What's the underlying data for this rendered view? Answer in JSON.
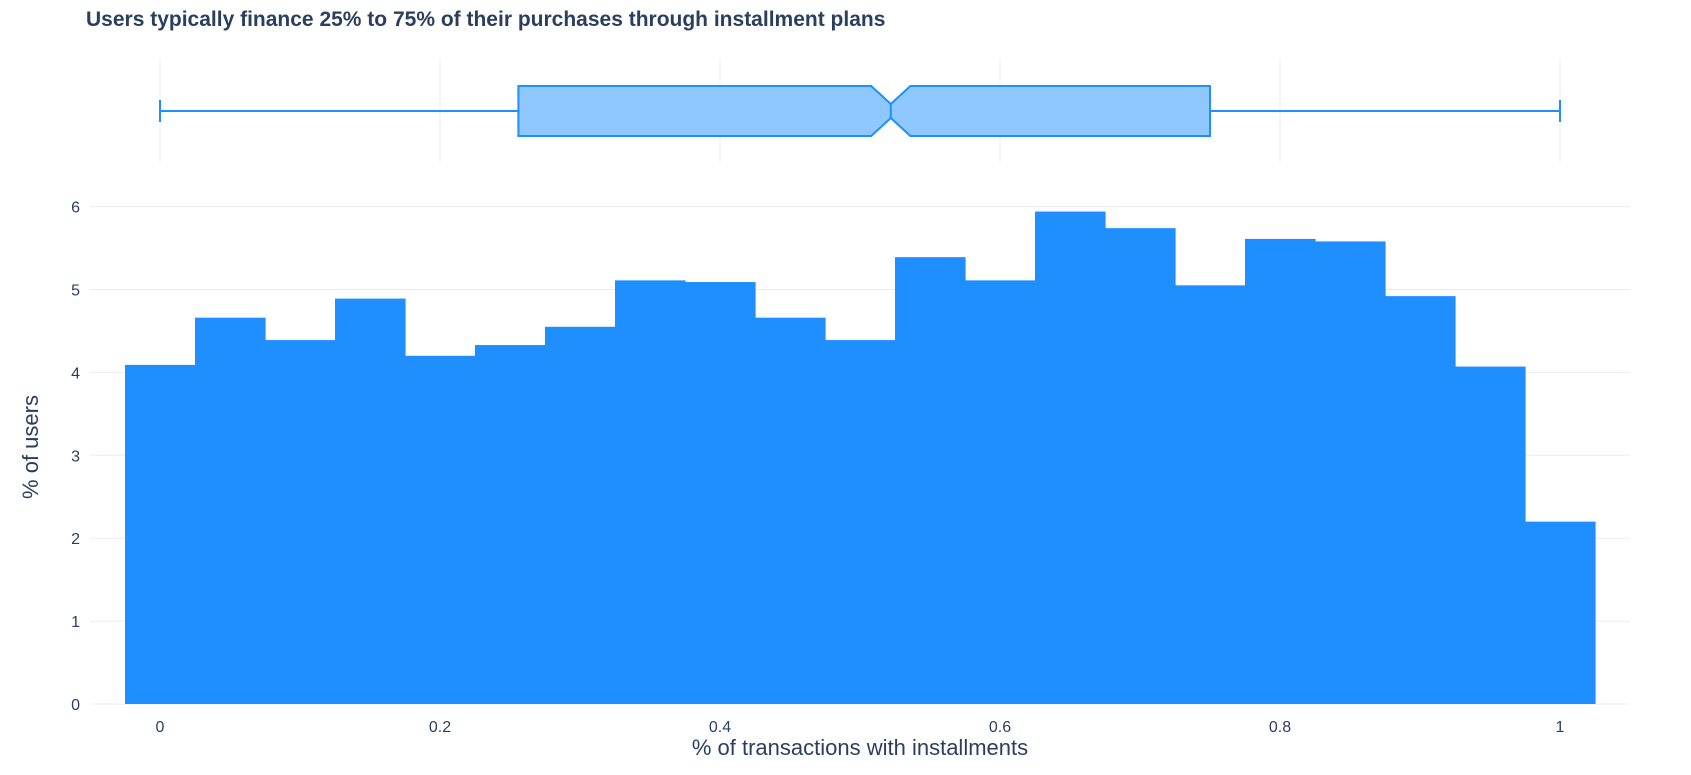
{
  "chart_data": {
    "type": "bar",
    "title": "Users typically finance 25% to 75% of their purchases through installment plans",
    "xlabel": "% of transactions with installments",
    "ylabel": "% of users",
    "xlim": [
      -0.05,
      1.05
    ],
    "ylim": [
      0,
      6.2
    ],
    "xticks": [
      "0",
      "0.2",
      "0.4",
      "0.6",
      "0.8",
      "1"
    ],
    "yticks": [
      "0",
      "1",
      "2",
      "3",
      "4",
      "5",
      "6"
    ],
    "grid": true,
    "color": "#1f8fff",
    "histogram": {
      "bin_start": -0.025,
      "bin_width": 0.05,
      "values": [
        4.09,
        4.66,
        4.39,
        4.89,
        4.2,
        4.33,
        4.55,
        5.11,
        5.09,
        4.66,
        4.39,
        5.39,
        5.11,
        5.94,
        5.74,
        5.05,
        5.61,
        5.58,
        4.92,
        4.07,
        2.2
      ]
    },
    "box": {
      "min": 0.0,
      "q1": 0.256,
      "median": 0.522,
      "q3": 0.75,
      "max": 1.0,
      "notch_low": 0.508,
      "notch_high": 0.536,
      "fill_color": "#8fc7ff",
      "line_color": "#1f8fff"
    }
  }
}
